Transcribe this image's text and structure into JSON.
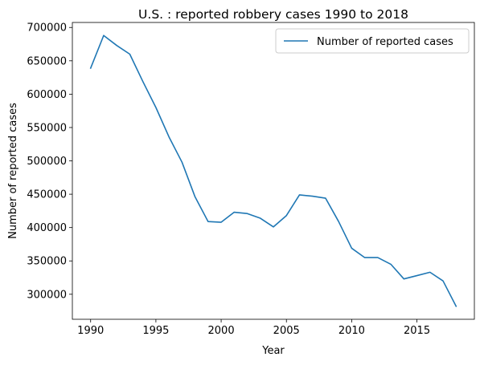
{
  "chart_data": {
    "type": "line",
    "title": "U.S. : reported robbery cases 1990 to 2018",
    "xlabel": "Year",
    "ylabel": "Number of reported cases",
    "xlim": [
      1988.6,
      2019.4
    ],
    "ylim": [
      262500,
      707500
    ],
    "x_ticks": [
      1990,
      1995,
      2000,
      2005,
      2010,
      2015
    ],
    "y_ticks": [
      300000,
      350000,
      400000,
      450000,
      500000,
      550000,
      600000,
      650000,
      700000
    ],
    "grid": false,
    "legend_position": "upper right",
    "series": [
      {
        "name": "Number of reported cases",
        "color": "#1f77b4",
        "x": [
          1990,
          1991,
          1992,
          1993,
          1994,
          1995,
          1996,
          1997,
          1998,
          1999,
          2000,
          2001,
          2002,
          2003,
          2004,
          2005,
          2006,
          2007,
          2008,
          2009,
          2010,
          2011,
          2012,
          2013,
          2014,
          2015,
          2016,
          2017,
          2018
        ],
        "values": [
          639000,
          688000,
          673000,
          660000,
          619000,
          580000,
          536000,
          498000,
          446000,
          409000,
          408000,
          423000,
          421000,
          414000,
          401000,
          418000,
          449000,
          447000,
          444000,
          409000,
          369000,
          355000,
          355000,
          345000,
          323000,
          328000,
          333000,
          320000,
          282000
        ]
      }
    ]
  }
}
